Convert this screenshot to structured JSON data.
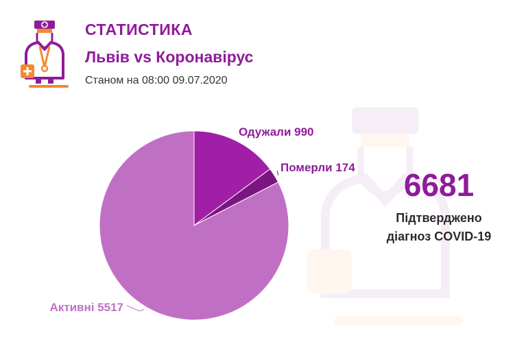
{
  "header": {
    "title": "СТАТИСТИКА",
    "subtitle": "Львів vs Коронавірус",
    "date": "Станом на 08:00 09.07.2020"
  },
  "colors": {
    "accent": "#8f1b9a",
    "recovered": "#a11fa6",
    "deaths": "#7b1580",
    "active": "#c070c4",
    "logo_orange": "#f28a2e"
  },
  "icons": {
    "logo": "doctor-icon",
    "watermark": "doctor-watermark-icon"
  },
  "summary": {
    "total": "6681",
    "caption_line1": "Підтверджено",
    "caption_line2": "діагноз COVID-19"
  },
  "chart_data": {
    "type": "pie",
    "title": "",
    "legend": "none",
    "slices": [
      {
        "label": "Одужали 990",
        "category": "Одужали",
        "value": 990,
        "color": "#a11fa6"
      },
      {
        "label": "Померли 174",
        "category": "Померли",
        "value": 174,
        "color": "#7b1580"
      },
      {
        "label": "Активні 5517",
        "category": "Активні",
        "value": 5517,
        "color": "#c070c4"
      }
    ]
  }
}
